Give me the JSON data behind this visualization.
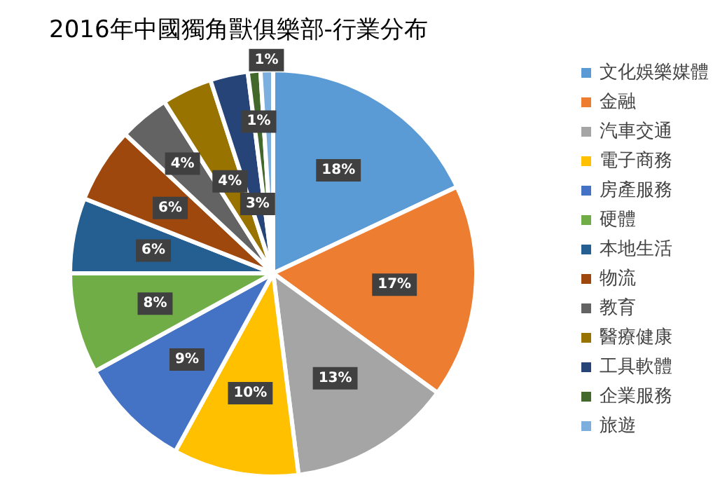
{
  "chart_data": {
    "type": "pie",
    "title": "2016年中國獨角獸俱樂部-行業分布",
    "categories": [
      "文化娛樂媒體",
      "金融",
      "汽車交通",
      "電子商務",
      "房產服務",
      "硬體",
      "本地生活",
      "物流",
      "教育",
      "醫療健康",
      "工具軟體",
      "企業服務",
      "旅遊"
    ],
    "values": [
      18,
      17,
      13,
      10,
      9,
      8,
      6,
      6,
      4,
      4,
      3,
      1,
      1
    ],
    "colors": [
      "#5b9bd5",
      "#ed7d31",
      "#a5a5a5",
      "#ffc000",
      "#4472c4",
      "#70ad47",
      "#255e91",
      "#9e480e",
      "#636363",
      "#997300",
      "#264478",
      "#43682b",
      "#7cafdd"
    ],
    "value_labels": [
      "18%",
      "17%",
      "13%",
      "10%",
      "9%",
      "8%",
      "6%",
      "6%",
      "4%",
      "4%",
      "3%",
      "1%",
      "1%"
    ],
    "legend": "right"
  }
}
